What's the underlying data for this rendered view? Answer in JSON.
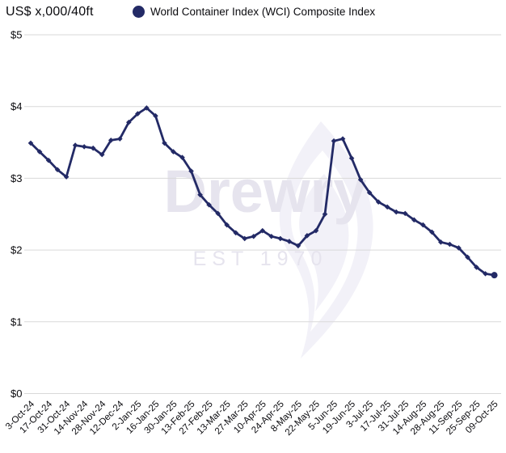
{
  "header": {
    "unit_label": "US$ x,000/40ft",
    "legend": {
      "label": "World Container Index (WCI) Composite Index",
      "marker_color": "#232a66"
    }
  },
  "watermark": {
    "brand": "Drewry",
    "est": "EST 1970"
  },
  "colors": {
    "line": "#232a66",
    "gridline": "#d9d9d9",
    "text": "#0b0b0f",
    "watermark_text": "#e6e4ee",
    "watermark_flame": "#f2f1f8"
  },
  "chart_data": {
    "type": "line",
    "title": "World Container Index (WCI) Composite Index",
    "xlabel": "",
    "ylabel": "US$ x,000/40ft",
    "ylim": [
      0,
      5
    ],
    "ytick_labels": [
      "$0",
      "$1",
      "$2",
      "$3",
      "$4",
      "$5"
    ],
    "grid": "horizontal",
    "legend_position": "top",
    "x_tick_labels": [
      "3-Oct-24",
      "17-Oct-24",
      "31-Oct-24",
      "14-Nov-24",
      "28-Nov-24",
      "12-Dec-24",
      "2-Jan-25",
      "16-Jan-25",
      "30-Jan-25",
      "13-Feb-25",
      "27-Feb-25",
      "13-Mar-25",
      "27-Mar-25",
      "10-Apr-25",
      "24-Apr-25",
      "8-May-25",
      "22-May-25",
      "5-Jun-25",
      "19-Jun-25",
      "3-Jul-25",
      "17-Jul-25",
      "31-Jul-25",
      "14-Aug-25",
      "28-Aug-25",
      "11-Sep-25",
      "25-Sep-25",
      "09-Oct-25"
    ],
    "x": [
      "3-Oct-24",
      "10-Oct-24",
      "17-Oct-24",
      "24-Oct-24",
      "31-Oct-24",
      "7-Nov-24",
      "14-Nov-24",
      "21-Nov-24",
      "28-Nov-24",
      "5-Dec-24",
      "12-Dec-24",
      "19-Dec-24",
      "2-Jan-25",
      "9-Jan-25",
      "16-Jan-25",
      "23-Jan-25",
      "30-Jan-25",
      "6-Feb-25",
      "13-Feb-25",
      "20-Feb-25",
      "27-Feb-25",
      "6-Mar-25",
      "13-Mar-25",
      "20-Mar-25",
      "27-Mar-25",
      "3-Apr-25",
      "10-Apr-25",
      "17-Apr-25",
      "24-Apr-25",
      "1-May-25",
      "8-May-25",
      "15-May-25",
      "22-May-25",
      "29-May-25",
      "5-Jun-25",
      "12-Jun-25",
      "19-Jun-25",
      "26-Jun-25",
      "3-Jul-25",
      "10-Jul-25",
      "17-Jul-25",
      "24-Jul-25",
      "31-Jul-25",
      "7-Aug-25",
      "14-Aug-25",
      "21-Aug-25",
      "28-Aug-25",
      "4-Sep-25",
      "11-Sep-25",
      "18-Sep-25",
      "25-Sep-25",
      "2-Oct-25",
      "09-Oct-25"
    ],
    "series": [
      {
        "name": "World Container Index (WCI) Composite Index",
        "color": "#232a66",
        "values": [
          3.49,
          3.37,
          3.25,
          3.12,
          3.02,
          3.46,
          3.44,
          3.42,
          3.33,
          3.53,
          3.55,
          3.78,
          3.9,
          3.98,
          3.87,
          3.49,
          3.37,
          3.29,
          3.1,
          2.77,
          2.63,
          2.51,
          2.35,
          2.24,
          2.16,
          2.19,
          2.27,
          2.19,
          2.16,
          2.12,
          2.06,
          2.2,
          2.27,
          2.5,
          3.52,
          3.55,
          3.28,
          2.98,
          2.8,
          2.67,
          2.6,
          2.53,
          2.51,
          2.42,
          2.35,
          2.25,
          2.11,
          2.08,
          2.03,
          1.9,
          1.76,
          1.67,
          1.65
        ]
      }
    ]
  }
}
